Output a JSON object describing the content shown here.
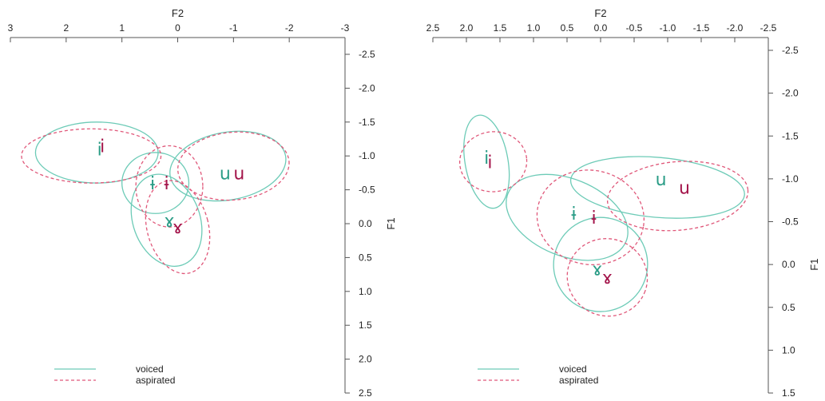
{
  "top_caption": "",
  "colors": {
    "voiced": "#6dcbb7",
    "aspirated": "#e0587a",
    "voiced_label": "#2a9c86",
    "aspirated_label": "#a3144a"
  },
  "chart_data": [
    {
      "type": "scatter",
      "xlabel": "F2",
      "ylabel": "F1",
      "xlim": [
        3,
        -3
      ],
      "ylim": [
        -2.5,
        2.5
      ],
      "x_ticks": [
        "3",
        "2",
        "1",
        "0",
        "-1",
        "-2",
        "-3"
      ],
      "y_ticks": [
        "-2.5",
        "-2.0",
        "-1.5",
        "-1.0",
        "-0.5",
        "0.0",
        "0.5",
        "1.0",
        "1.5",
        "2.0",
        "2.5"
      ],
      "legend": [
        "voiced",
        "aspirated"
      ],
      "series": [
        {
          "name": "voiced",
          "points": [
            {
              "label": "i",
              "x": 1.4,
              "y": -1.1
            },
            {
              "label": "ɨ",
              "x": 0.45,
              "y": -0.6
            },
            {
              "label": "u",
              "x": -0.85,
              "y": -0.75
            },
            {
              "label": "ɤ",
              "x": 0.15,
              "y": -0.05
            }
          ],
          "ellipses": [
            {
              "vowel": "i",
              "cx": 1.45,
              "cy": -1.05,
              "rx": 1.1,
              "ry": 0.45,
              "angle": 0
            },
            {
              "vowel": "ɨ",
              "cx": 0.4,
              "cy": -0.6,
              "rx": 0.6,
              "ry": 0.45,
              "angle": 0
            },
            {
              "vowel": "u",
              "cx": -0.9,
              "cy": -0.85,
              "rx": 1.05,
              "ry": 0.5,
              "angle": -10
            },
            {
              "vowel": "ɤ",
              "cx": 0.2,
              "cy": -0.05,
              "rx": 0.6,
              "ry": 0.7,
              "angle": -20
            }
          ]
        },
        {
          "name": "aspirated",
          "points": [
            {
              "label": "i",
              "x": 1.35,
              "y": -1.15
            },
            {
              "label": "ɨ",
              "x": 0.2,
              "y": -0.6
            },
            {
              "label": "u",
              "x": -1.1,
              "y": -0.75
            },
            {
              "label": "ɤ",
              "x": 0.0,
              "y": 0.05
            }
          ],
          "ellipses": [
            {
              "vowel": "i",
              "cx": 1.55,
              "cy": -1.0,
              "rx": 1.25,
              "ry": 0.4,
              "angle": 0
            },
            {
              "vowel": "ɨ",
              "cx": 0.15,
              "cy": -0.55,
              "rx": 0.6,
              "ry": 0.6,
              "angle": 0
            },
            {
              "vowel": "u",
              "cx": -1.0,
              "cy": -0.85,
              "rx": 1.0,
              "ry": 0.5,
              "angle": -5
            },
            {
              "vowel": "ɤ",
              "cx": 0.0,
              "cy": 0.05,
              "rx": 0.55,
              "ry": 0.7,
              "angle": -15
            }
          ]
        }
      ]
    },
    {
      "type": "scatter",
      "xlabel": "F2",
      "ylabel": "F1",
      "xlim": [
        2.5,
        -2.5
      ],
      "ylim": [
        -2.5,
        1.5
      ],
      "x_ticks": [
        "2.5",
        "2.0",
        "1.5",
        "1.0",
        "0.5",
        "0.0",
        "-0.5",
        "-1.0",
        "-1.5",
        "-2.0",
        "-2.5"
      ],
      "y_ticks": [
        "-2.5",
        "-2.0",
        "-1.5",
        "-1.0",
        "-0.5",
        "0.0",
        "0.5",
        "1.0",
        "1.5"
      ],
      "legend": [
        "voiced",
        "aspirated"
      ],
      "series": [
        {
          "name": "voiced",
          "points": [
            {
              "label": "i",
              "x": 1.7,
              "y": -1.25
            },
            {
              "label": "ɨ",
              "x": 0.4,
              "y": -0.6
            },
            {
              "label": "u",
              "x": -0.9,
              "y": -1.0
            },
            {
              "label": "ɤ",
              "x": 0.05,
              "y": 0.05
            }
          ],
          "ellipses": [
            {
              "vowel": "i",
              "cx": 1.7,
              "cy": -1.2,
              "rx": 0.32,
              "ry": 0.55,
              "angle": -10
            },
            {
              "vowel": "ɨ",
              "cx": 0.5,
              "cy": -0.55,
              "rx": 0.95,
              "ry": 0.45,
              "angle": 22
            },
            {
              "vowel": "u",
              "cx": -0.85,
              "cy": -0.9,
              "rx": 1.3,
              "ry": 0.35,
              "angle": 5
            },
            {
              "vowel": "ɤ",
              "cx": 0.0,
              "cy": -0.0,
              "rx": 0.7,
              "ry": 0.55,
              "angle": 30
            }
          ]
        },
        {
          "name": "aspirated",
          "points": [
            {
              "label": "i",
              "x": 1.65,
              "y": -1.2
            },
            {
              "label": "ɨ",
              "x": 0.1,
              "y": -0.55
            },
            {
              "label": "u",
              "x": -1.25,
              "y": -0.9
            },
            {
              "label": "ɤ",
              "x": -0.1,
              "y": 0.15
            }
          ],
          "ellipses": [
            {
              "vowel": "i",
              "cx": 1.6,
              "cy": -1.2,
              "rx": 0.5,
              "ry": 0.35,
              "angle": -5
            },
            {
              "vowel": "ɨ",
              "cx": 0.15,
              "cy": -0.55,
              "rx": 0.8,
              "ry": 0.55,
              "angle": 10
            },
            {
              "vowel": "u",
              "cx": -1.15,
              "cy": -0.8,
              "rx": 1.05,
              "ry": 0.4,
              "angle": -5
            },
            {
              "vowel": "ɤ",
              "cx": -0.1,
              "cy": 0.15,
              "rx": 0.6,
              "ry": 0.45,
              "angle": 20
            }
          ]
        }
      ]
    }
  ]
}
